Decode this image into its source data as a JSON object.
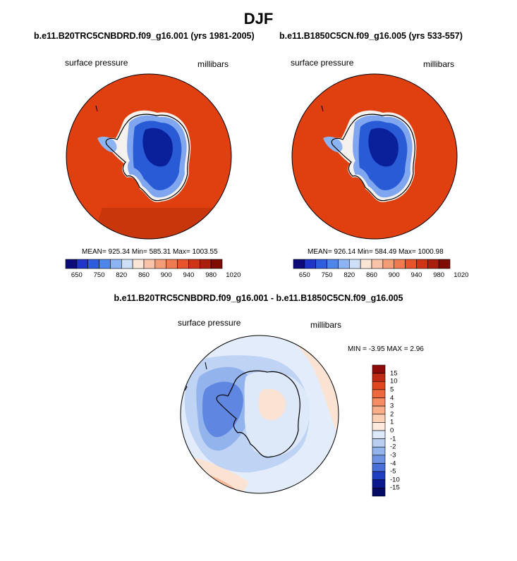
{
  "page": {
    "title": "DJF",
    "diff_title": "b.e11.B20TRC5CNBDRD.f09_g16.001 - b.e11.B1850C5CN.f09_g16.005"
  },
  "panels": [
    {
      "case_title": "b.e11.B20TRC5CNBDRD.f09_g16.001 (yrs 1981-2005)",
      "variable": "surface pressure",
      "units": "millibars",
      "stats": "MEAN= 925.34  Min= 585.31  Max= 1003.55"
    },
    {
      "case_title": "b.e11.B1850C5CN.f09_g16.005 (yrs 533-557)",
      "variable": "surface pressure",
      "units": "millibars",
      "stats": "MEAN= 926.14  Min= 584.49  Max= 1000.98"
    }
  ],
  "diff_panel": {
    "variable": "surface pressure",
    "units": "millibars",
    "stats": "MIN =  -3.95 MAX =   2.96"
  },
  "colorbar_main": {
    "labels": [
      "650",
      "750",
      "820",
      "860",
      "900",
      "940",
      "980",
      "1020"
    ],
    "colors": [
      "#0b0b7a",
      "#1f34c8",
      "#2e5de0",
      "#4f86ec",
      "#8db4f2",
      "#cddff7",
      "#fbe6d6",
      "#f8c3a8",
      "#f39c78",
      "#ef7b52",
      "#e6532c",
      "#cf3417",
      "#a81f0e",
      "#7f0d06"
    ]
  },
  "colorbar_diff": {
    "labels": [
      "15",
      "10",
      "5",
      "4",
      "3",
      "2",
      "1",
      "0",
      "-1",
      "-2",
      "-3",
      "-4",
      "-5",
      "-10",
      "-15"
    ],
    "colors": [
      "#8e0a0a",
      "#c02a14",
      "#e0461f",
      "#ee6a3e",
      "#f58c62",
      "#f8ae88",
      "#fbcfb3",
      "#fde9dd",
      "#dde8f8",
      "#b9cff2",
      "#93b3ec",
      "#6f93e4",
      "#4a6fda",
      "#1f3ec2",
      "#0b1890",
      "#050a64"
    ]
  },
  "map_colors": {
    "ocean_high": "#e0400f",
    "continent_low": "#0a1f9a",
    "continent_mid": "#2a5bd6",
    "continent_edge": "#7fa6ee",
    "coast_white": "#f4f1ee",
    "diff_base": "#e3ecfa",
    "diff_neg1": "#bfd3f4",
    "diff_neg2": "#93b3ec",
    "diff_neg3": "#5f86e0",
    "diff_pos1": "#fbe3d4",
    "diff_pos2": "#f5b89a"
  }
}
